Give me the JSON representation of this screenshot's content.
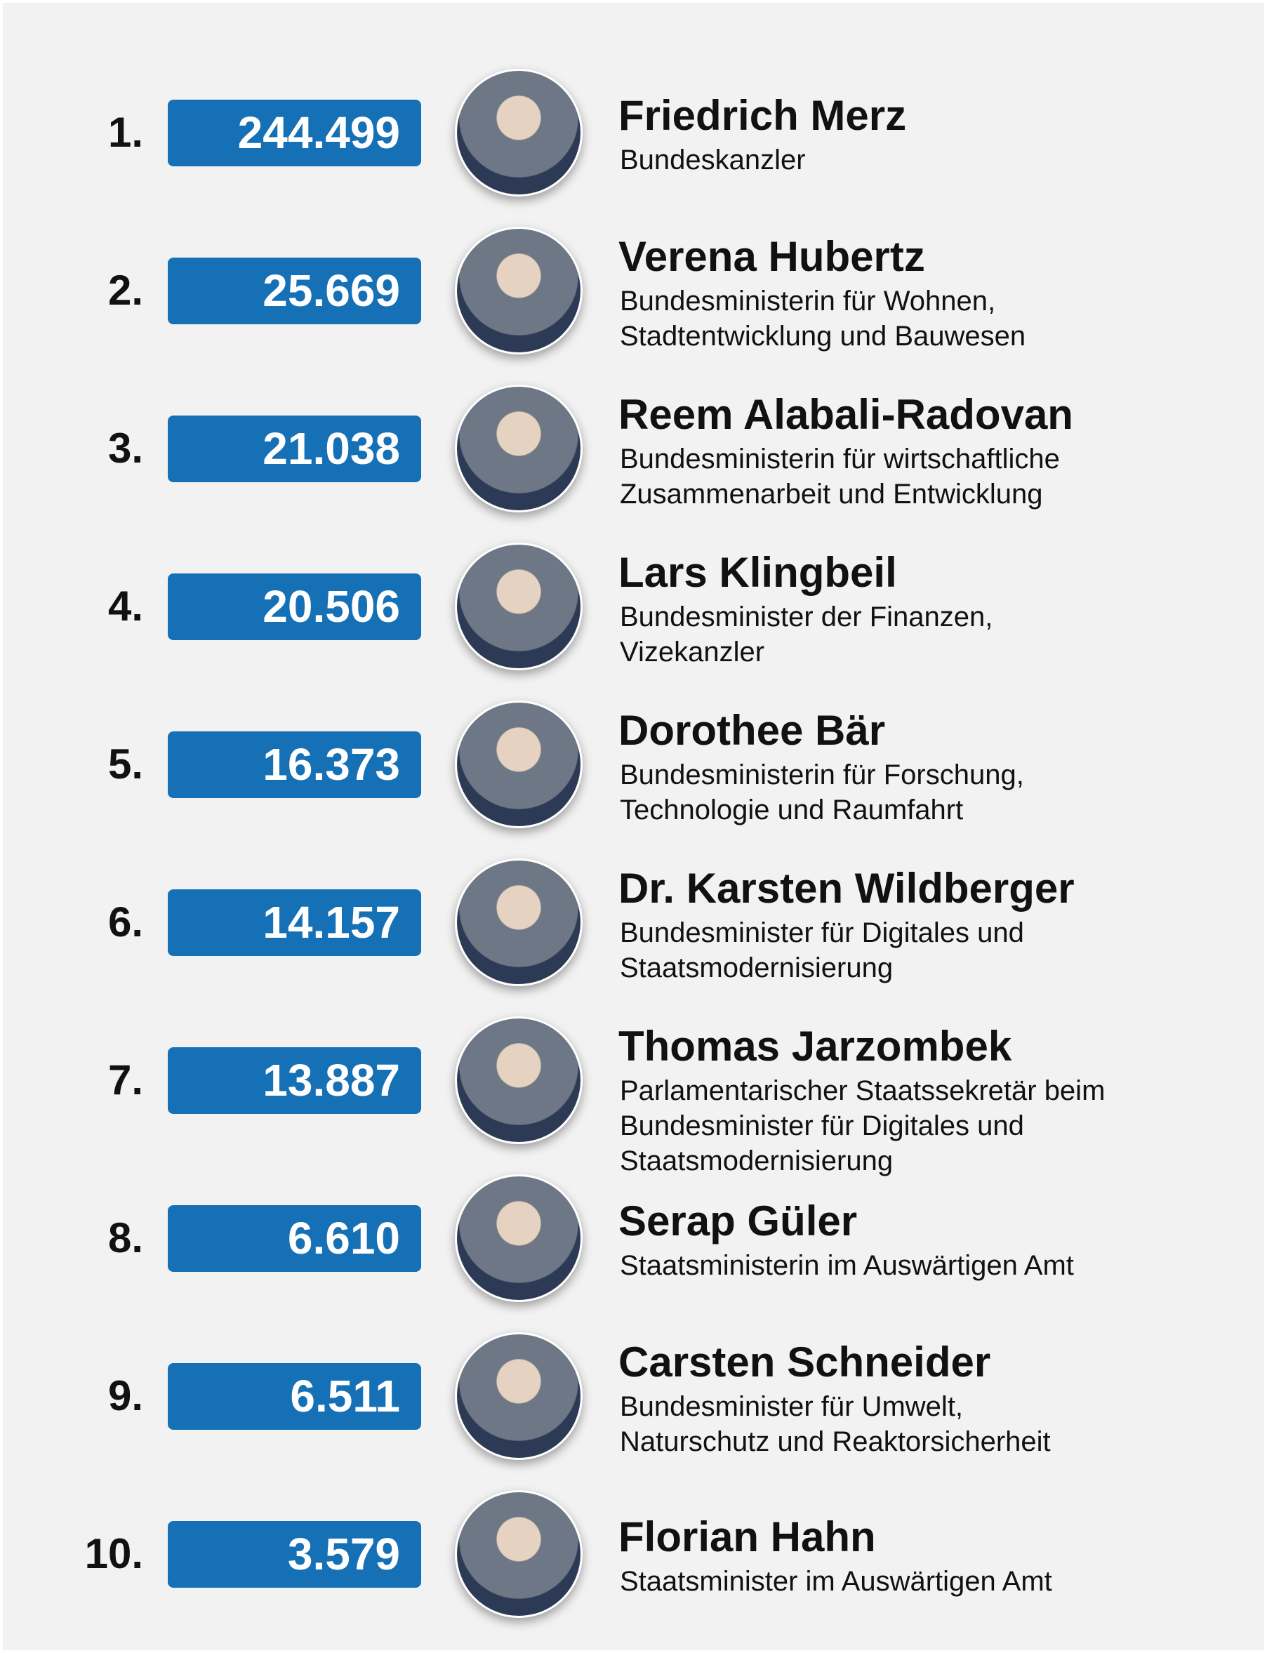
{
  "items": [
    {
      "rank": "1.",
      "value": "244.499",
      "name": "Friedrich Merz",
      "role": [
        "Bundeskanzler"
      ]
    },
    {
      "rank": "2.",
      "value": "25.669",
      "name": "Verena Hubertz",
      "role": [
        "Bundesministerin für Wohnen,",
        "Stadtentwicklung und Bauwesen"
      ]
    },
    {
      "rank": "3.",
      "value": "21.038",
      "name": "Reem Alabali-Radovan",
      "role": [
        "Bundesministerin für wirtschaftliche",
        "Zusammenarbeit und Entwicklung"
      ]
    },
    {
      "rank": "4.",
      "value": "20.506",
      "name": "Lars Klingbeil",
      "role": [
        "Bundesminister der Finanzen,",
        "Vizekanzler"
      ]
    },
    {
      "rank": "5.",
      "value": "16.373",
      "name": "Dorothee Bär",
      "role": [
        "Bundesministerin für Forschung,",
        "Technologie und Raumfahrt"
      ]
    },
    {
      "rank": "6.",
      "value": "14.157",
      "name": "Dr. Karsten Wildberger",
      "role": [
        "Bundesminister für Digitales und",
        "Staatsmodernisierung"
      ]
    },
    {
      "rank": "7.",
      "value": "13.887",
      "name": "Thomas Jarzombek",
      "role": [
        "Parlamentarischer Staatssekretär beim",
        "Bundesminister für Digitales und",
        "Staatsmodernisierung"
      ]
    },
    {
      "rank": "8.",
      "value": "6.610",
      "name": "Serap Güler",
      "role": [
        "Staatsministerin im Auswärtigen Amt"
      ]
    },
    {
      "rank": "9.",
      "value": "6.511",
      "name": "Carsten Schneider",
      "role": [
        "Bundesminister für Umwelt,",
        "Naturschutz und Reaktorsicherheit"
      ]
    },
    {
      "rank": "10.",
      "value": "3.579",
      "name": "Florian Hahn",
      "role": [
        "Staatsminister im Auswärtigen Amt"
      ]
    }
  ]
}
